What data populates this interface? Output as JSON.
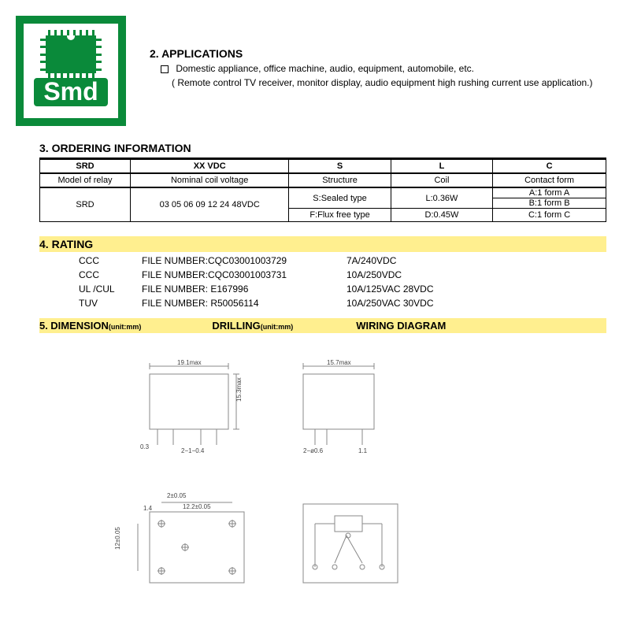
{
  "logo": {
    "brand": "Smd",
    "green": "#0a8a3a",
    "white": "#ffffff"
  },
  "applications": {
    "number": "2.",
    "title": "APPLICATIONS",
    "line1": "Domestic appliance, office machine, audio, equipment, automobile, etc.",
    "line2": "( Remote control TV receiver, monitor display, audio equipment high rushing current use application.)"
  },
  "ordering": {
    "number": "3.",
    "title": "ORDERING INFORMATION",
    "headers": [
      "SRD",
      "XX VDC",
      "S",
      "L",
      "C"
    ],
    "sub": [
      "Model of relay",
      "Nominal coil voltage",
      "Structure",
      "Coil",
      "Contact form"
    ],
    "model": "SRD",
    "voltages": "03 05 06 09 12 24 48VDC",
    "structure_vals": [
      "S:Sealed   type",
      "F:Flux free type"
    ],
    "coil_vals": [
      "L:0.36W",
      "D:0.45W"
    ],
    "contact_vals": [
      "A:1 form A",
      "B:1 form B",
      "C:1 form C"
    ]
  },
  "rating": {
    "number": "4.",
    "title": "RATING",
    "rows": [
      {
        "agency": "CCC",
        "file": "FILE NUMBER:CQC03001003729",
        "spec": "7A/240VDC"
      },
      {
        "agency": "CCC",
        "file": "FILE NUMBER:CQC03001003731",
        "spec": "10A/250VDC"
      },
      {
        "agency": "UL /CUL",
        "file": "FILE NUMBER: E167996",
        "spec": "10A/125VAC 28VDC"
      },
      {
        "agency": "TUV",
        "file": "FILE NUMBER: R50056114",
        "spec": "10A/250VAC 30VDC"
      }
    ]
  },
  "section5": {
    "number": "5.",
    "dim_label": "DIMENSION",
    "dim_unit": "(unit:mm)",
    "drill_label": "DRILLING",
    "drill_unit": "(unit:mm)",
    "wiring_label": "WIRING DIAGRAM"
  },
  "diagrams": {
    "stroke": "#888888",
    "text_color": "#444444",
    "side_top_w": "19.1max",
    "side_h": "15.3max",
    "front_w": "15.7max",
    "drill_a": "2±0.05",
    "drill_b": "12.2±0.05",
    "drill_c": "12±0.05",
    "drill_d": "1.4",
    "lead_lbls": {
      "a": "0.3",
      "b": "2−1−0.4",
      "c": "2−ø0.6",
      "d": "1.1"
    }
  },
  "yellow": "#ffef8f"
}
